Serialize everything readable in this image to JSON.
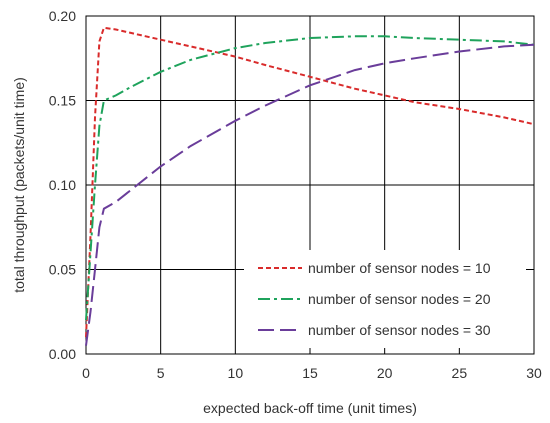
{
  "chart_data": {
    "type": "line",
    "xlabel": "expected back-off time (unit times)",
    "ylabel": "total throughput  (packets/unit time)",
    "xlim": [
      0,
      30
    ],
    "ylim": [
      0,
      0.2
    ],
    "x_ticks": [
      "0",
      "5",
      "10",
      "15",
      "20",
      "25",
      "30"
    ],
    "y_ticks": [
      "0.00",
      "0.05",
      "0.10",
      "0.15",
      "0.20"
    ],
    "grid": true,
    "legend_position": "bottom-right",
    "series": [
      {
        "name": "number of sensor nodes = 10",
        "color": "#d92b2b",
        "dash": "short-dash",
        "x": [
          0,
          0.3,
          0.6,
          0.9,
          1.2,
          2,
          3,
          5,
          7,
          10,
          12,
          15,
          18,
          20,
          22,
          25,
          28,
          30
        ],
        "y": [
          0.01,
          0.07,
          0.14,
          0.185,
          0.193,
          0.192,
          0.19,
          0.186,
          0.182,
          0.176,
          0.171,
          0.164,
          0.157,
          0.153,
          0.149,
          0.145,
          0.14,
          0.136
        ]
      },
      {
        "name": "number of sensor nodes = 20",
        "color": "#1fa35c",
        "dash": "dash-dot",
        "x": [
          0,
          0.3,
          0.6,
          0.9,
          1.2,
          2,
          3,
          5,
          7,
          10,
          12,
          15,
          18,
          20,
          22,
          25,
          28,
          30
        ],
        "y": [
          0.02,
          0.06,
          0.1,
          0.135,
          0.15,
          0.153,
          0.158,
          0.167,
          0.174,
          0.181,
          0.184,
          0.187,
          0.188,
          0.188,
          0.187,
          0.186,
          0.185,
          0.183
        ]
      },
      {
        "name": "number of sensor nodes = 30",
        "color": "#6a3d9a",
        "dash": "long-dash",
        "x": [
          0,
          0.3,
          0.6,
          0.9,
          1.2,
          2,
          3,
          5,
          7,
          10,
          12,
          15,
          18,
          20,
          22,
          25,
          28,
          30
        ],
        "y": [
          0.005,
          0.025,
          0.05,
          0.075,
          0.086,
          0.09,
          0.097,
          0.111,
          0.123,
          0.138,
          0.147,
          0.159,
          0.168,
          0.172,
          0.175,
          0.179,
          0.182,
          0.183
        ]
      }
    ]
  }
}
